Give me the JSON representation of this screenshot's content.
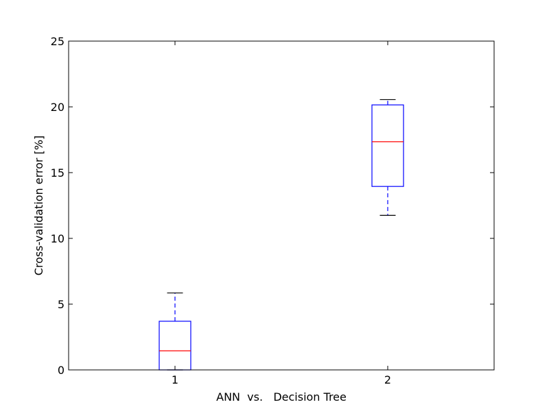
{
  "chart_data": {
    "type": "box",
    "title": "",
    "xlabel": "ANN  vs.   Decision Tree",
    "ylabel": "Cross-validation error [%]",
    "ylim": [
      0,
      25
    ],
    "yticks": [
      0,
      5,
      10,
      15,
      20,
      25
    ],
    "categories": [
      "1",
      "2"
    ],
    "grid": false,
    "boxes": [
      {
        "label": "1",
        "whisker_low": 0.0,
        "q1": 0.0,
        "median": 1.45,
        "q3": 3.7,
        "whisker_high": 5.85
      },
      {
        "label": "2",
        "whisker_low": 11.75,
        "q1": 13.95,
        "median": 17.35,
        "q3": 20.15,
        "whisker_high": 20.55
      }
    ],
    "colors": {
      "box": "#0000ff",
      "median": "#ff0000",
      "cap": "#000000",
      "axes": "#000000"
    }
  }
}
